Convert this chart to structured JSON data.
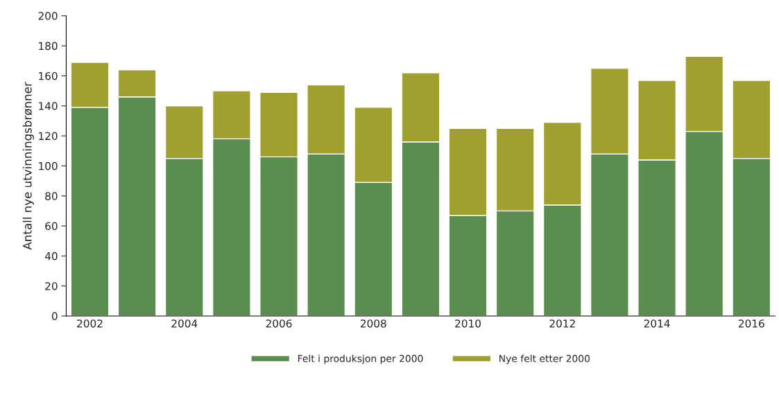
{
  "chart_data": {
    "type": "bar",
    "stacked": true,
    "ylabel": "Antall nye utvinningsbrønner",
    "categories": [
      "2002",
      null,
      "2004",
      null,
      "2006",
      null,
      "2008",
      null,
      "2010",
      null,
      "2012",
      null,
      "2014",
      null,
      "2016"
    ],
    "series": [
      {
        "name": "Felt i produksjon per 2000",
        "color": "#5b8c50",
        "values": [
          139,
          146,
          105,
          118,
          106,
          108,
          89,
          116,
          67,
          70,
          74,
          108,
          104,
          123,
          105
        ]
      },
      {
        "name": "Nye felt etter 2000",
        "color": "#a0a030",
        "values": [
          30,
          18,
          35,
          32,
          43,
          46,
          50,
          46,
          58,
          55,
          55,
          57,
          53,
          50,
          52
        ]
      }
    ],
    "ylim": [
      0,
      200
    ],
    "yticks": [
      0,
      20,
      40,
      60,
      80,
      100,
      120,
      140,
      160,
      180,
      200
    ],
    "grid": false,
    "legend": "bottom"
  }
}
